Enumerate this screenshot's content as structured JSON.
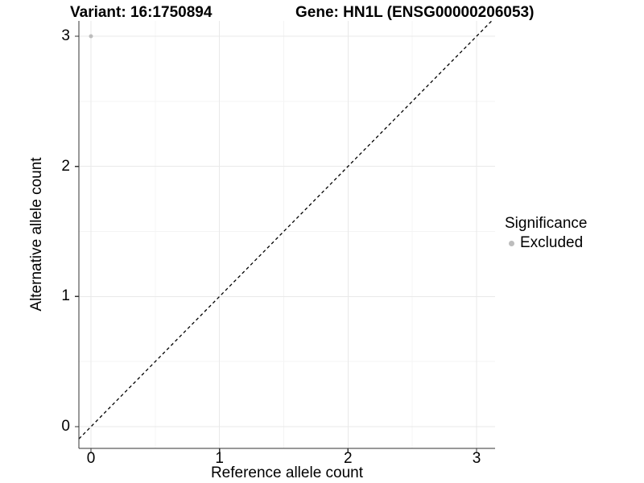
{
  "chart_data": {
    "type": "scatter",
    "title": "Variant: 16:1750894   Gene: HN1L (ENSG00000206053)",
    "title_variant": "Variant: 16:1750894",
    "title_gene": "Gene: HN1L (ENSG00000206053)",
    "xlabel": "Reference allele count",
    "ylabel": "Alternative allele count",
    "x_ticks": [
      0,
      1,
      2,
      3
    ],
    "y_ticks": [
      0,
      1,
      2,
      3
    ],
    "xlim": [
      -0.09,
      3.14
    ],
    "ylim": [
      -0.17,
      3.12
    ],
    "grid": {
      "major": true,
      "minor": true
    },
    "series": [
      {
        "name": "Excluded",
        "marker": "circle",
        "color": "#BDBDBD",
        "points": [
          {
            "x": 0,
            "y": 3
          }
        ]
      }
    ],
    "reference_line": {
      "equation": "y = x",
      "style": "dashed",
      "color": "#000000"
    },
    "legend": {
      "title": "Significance",
      "position": "right",
      "entries": [
        {
          "label": "Excluded",
          "color": "#BDBDBD",
          "marker": "circle"
        }
      ]
    }
  },
  "colors": {
    "background": "#FFFFFF",
    "grid_major": "#E9E9E9",
    "grid_minor": "#F4F4F4",
    "axis_line": "#333333",
    "tick_mark": "#333333",
    "point": "#BDBDBD",
    "text": "#000000"
  }
}
